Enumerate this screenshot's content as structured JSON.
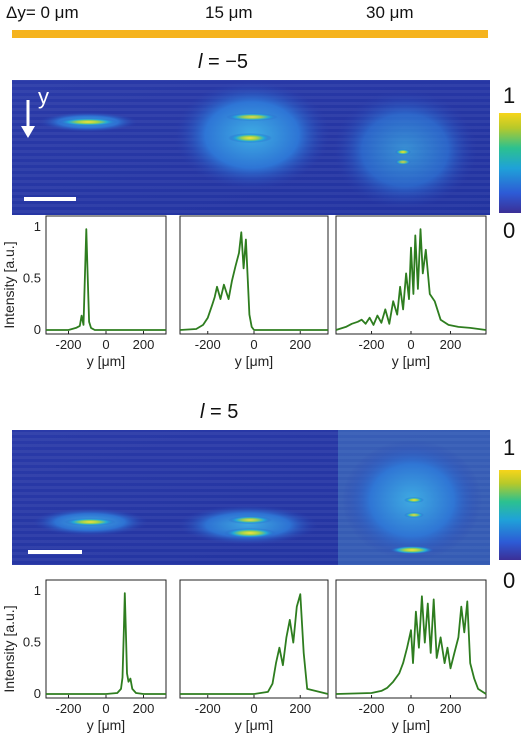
{
  "header": {
    "shift_labels": [
      "Δy= 0 μm",
      "15 μm",
      "30 μm"
    ],
    "bar_color": "#F5B31E"
  },
  "colorbar": {
    "max_label": "1",
    "min_label": "0"
  },
  "y_arrow_label": "y",
  "colors": {
    "line": "#2E7D1F",
    "axis": "#000000"
  },
  "chart_data": [
    {
      "type": "line",
      "panel": "l=-5, Δy=0 μm",
      "xlabel": "y [μm]",
      "ylabel": "Intensity [a.u.]",
      "xlim": [
        -320,
        320
      ],
      "ylim": [
        0,
        1.05
      ],
      "xticks": [
        -200,
        0,
        200
      ],
      "yticks": [
        0,
        0.5,
        1
      ],
      "x": [
        -320,
        -200,
        -160,
        -140,
        -130,
        -120,
        -112,
        -105,
        -98,
        -90,
        -80,
        -60,
        0,
        200,
        320
      ],
      "y": [
        0.0,
        0.0,
        0.02,
        0.04,
        0.14,
        0.05,
        0.55,
        0.98,
        0.55,
        0.08,
        0.02,
        0.0,
        0.0,
        0.0,
        0.0
      ]
    },
    {
      "type": "line",
      "panel": "l=-5, Δy=15 μm",
      "xlabel": "y [μm]",
      "ylabel": "Intensity [a.u.]",
      "xlim": [
        -320,
        320
      ],
      "ylim": [
        0,
        1.05
      ],
      "xticks": [
        -200,
        0,
        200
      ],
      "yticks": [
        0,
        0.5,
        1
      ],
      "x": [
        -320,
        -250,
        -220,
        -200,
        -180,
        -170,
        -160,
        -145,
        -130,
        -110,
        -95,
        -80,
        -65,
        -55,
        -45,
        -35,
        -20,
        -10,
        0,
        50,
        320
      ],
      "y": [
        0.0,
        0.01,
        0.05,
        0.12,
        0.25,
        0.32,
        0.42,
        0.3,
        0.44,
        0.3,
        0.48,
        0.62,
        0.75,
        0.95,
        0.6,
        0.88,
        0.15,
        0.03,
        0.0,
        0.0,
        0.0
      ]
    },
    {
      "type": "line",
      "panel": "l=-5, Δy=30 μm",
      "xlabel": "y [μm]",
      "ylabel": "Intensity [a.u.]",
      "xlim": [
        -380,
        380
      ],
      "ylim": [
        0,
        1.05
      ],
      "xticks": [
        -200,
        0,
        200
      ],
      "yticks": [
        0,
        0.5,
        1
      ],
      "x": [
        -380,
        -330,
        -300,
        -270,
        -250,
        -230,
        -210,
        -190,
        -170,
        -150,
        -130,
        -110,
        -90,
        -70,
        -55,
        -40,
        -25,
        -10,
        0,
        12,
        22,
        35,
        48,
        60,
        75,
        95,
        120,
        150,
        190,
        240,
        300,
        380
      ],
      "y": [
        0.0,
        0.03,
        0.06,
        0.08,
        0.1,
        0.06,
        0.12,
        0.05,
        0.14,
        0.07,
        0.2,
        0.06,
        0.28,
        0.15,
        0.42,
        0.2,
        0.55,
        0.3,
        0.8,
        0.35,
        0.92,
        0.4,
        0.98,
        0.55,
        0.78,
        0.35,
        0.28,
        0.1,
        0.05,
        0.03,
        0.02,
        0.0
      ]
    },
    {
      "type": "line",
      "panel": "l=5, Δy=0 μm",
      "xlabel": "y [μm]",
      "ylabel": "Intensity [a.u.]",
      "xlim": [
        -320,
        320
      ],
      "ylim": [
        0,
        1.05
      ],
      "xticks": [
        -200,
        0,
        200
      ],
      "yticks": [
        0,
        0.5,
        1
      ],
      "x": [
        -320,
        -200,
        0,
        60,
        80,
        88,
        95,
        100,
        106,
        112,
        120,
        130,
        140,
        160,
        200,
        320
      ],
      "y": [
        0.0,
        0.0,
        0.0,
        0.01,
        0.05,
        0.16,
        0.6,
        0.98,
        0.6,
        0.2,
        0.12,
        0.15,
        0.05,
        0.01,
        0.0,
        0.0
      ]
    },
    {
      "type": "line",
      "panel": "l=5, Δy=15 μm",
      "xlabel": "y [μm]",
      "ylabel": "Intensity [a.u.]",
      "xlim": [
        -320,
        320
      ],
      "ylim": [
        0,
        1.05
      ],
      "xticks": [
        -200,
        0,
        200
      ],
      "yticks": [
        0,
        0.5,
        1
      ],
      "x": [
        -320,
        -200,
        0,
        60,
        80,
        95,
        110,
        125,
        140,
        155,
        170,
        185,
        200,
        215,
        230,
        320
      ],
      "y": [
        0.0,
        0.0,
        0.0,
        0.02,
        0.1,
        0.3,
        0.45,
        0.28,
        0.55,
        0.72,
        0.5,
        0.85,
        0.97,
        0.4,
        0.05,
        0.0
      ]
    },
    {
      "type": "line",
      "panel": "l=5, Δy=30 μm",
      "xlabel": "y [μm]",
      "ylabel": "Intensity [a.u.]",
      "xlim": [
        -380,
        380
      ],
      "ylim": [
        0,
        1.05
      ],
      "xticks": [
        -200,
        0,
        200
      ],
      "yticks": [
        0,
        0.5,
        1
      ],
      "x": [
        -380,
        -200,
        -150,
        -120,
        -90,
        -60,
        -40,
        -20,
        0,
        10,
        25,
        40,
        55,
        70,
        85,
        100,
        115,
        130,
        150,
        170,
        185,
        200,
        220,
        240,
        255,
        270,
        285,
        300,
        320,
        340,
        380
      ],
      "y": [
        0.0,
        0.01,
        0.03,
        0.06,
        0.12,
        0.2,
        0.3,
        0.45,
        0.62,
        0.3,
        0.8,
        0.45,
        0.95,
        0.5,
        0.88,
        0.4,
        0.92,
        0.35,
        0.55,
        0.3,
        0.45,
        0.25,
        0.4,
        0.55,
        0.85,
        0.6,
        0.9,
        0.3,
        0.15,
        0.05,
        0.0
      ]
    }
  ]
}
